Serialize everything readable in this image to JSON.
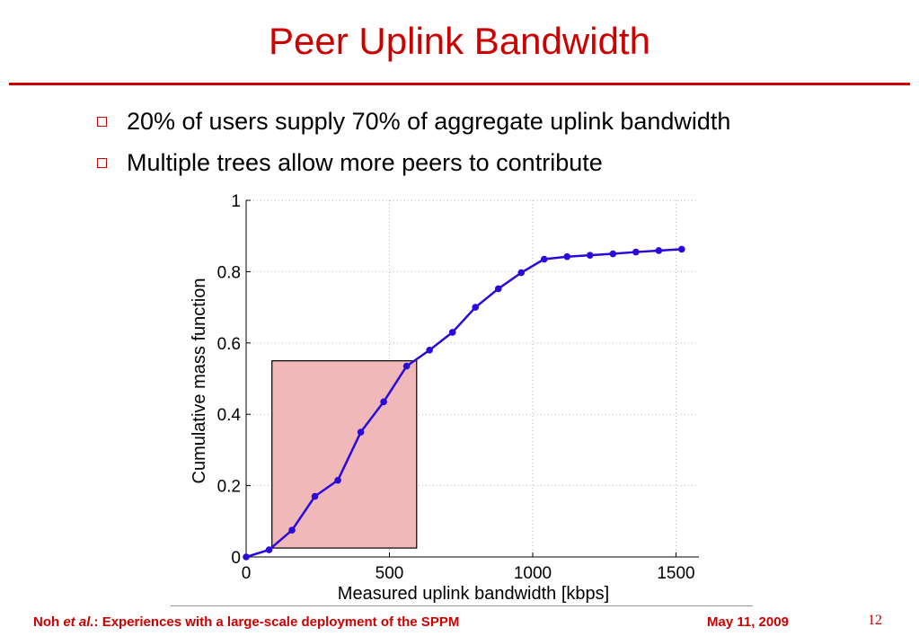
{
  "slide": {
    "title": "Peer Uplink Bandwidth",
    "bullets": [
      "20% of users supply 70% of aggregate uplink bandwidth",
      "Multiple trees allow more peers to contribute"
    ],
    "accent_color": "#cc0000",
    "bullet_icon": "hollow-square-bullet"
  },
  "footer": {
    "author": "Noh",
    "author_suffix": "et al.",
    "title_text": ": Experiences with a large-scale deployment of the SPPM",
    "date": "May 11, 2009",
    "page": "12"
  },
  "chart_data": {
    "type": "line",
    "xlabel": "Measured uplink bandwidth [kbps]",
    "ylabel": "Cumulative mass function",
    "xlim": [
      0,
      1580
    ],
    "ylim": [
      0,
      1
    ],
    "x_ticks": [
      "0",
      "500",
      "1000",
      "1500"
    ],
    "x_tick_values": [
      0,
      500,
      1000,
      1500
    ],
    "y_ticks": [
      "0",
      "0.2",
      "0.4",
      "0.6",
      "0.8",
      "1"
    ],
    "y_tick_values": [
      0,
      0.2,
      0.4,
      0.6,
      0.8,
      1
    ],
    "grid": "dotted",
    "line_color": "#2a0adb",
    "series": [
      {
        "x": [
          0,
          80,
          160,
          240,
          320,
          400,
          480,
          560,
          640,
          720,
          800,
          880,
          960,
          1040,
          1120,
          1200,
          1280,
          1360,
          1440,
          1520
        ],
        "y": [
          0.0,
          0.02,
          0.075,
          0.17,
          0.215,
          0.35,
          0.435,
          0.535,
          0.58,
          0.63,
          0.7,
          0.752,
          0.797,
          0.835,
          0.842,
          0.846,
          0.85,
          0.855,
          0.859,
          0.863
        ]
      }
    ],
    "highlight_region": {
      "x": [
        90,
        595
      ],
      "y": [
        0.025,
        0.55
      ],
      "fill": "#f0b8b8",
      "stroke": "#000000"
    }
  }
}
